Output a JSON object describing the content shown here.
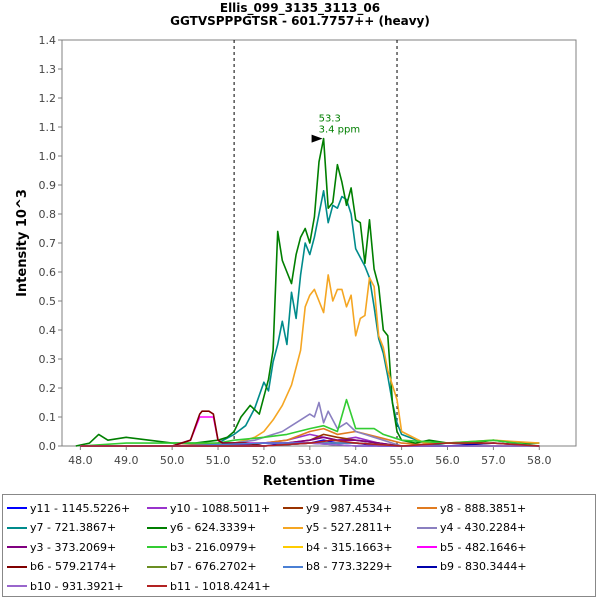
{
  "chart_data": {
    "type": "line",
    "title": "Ellis_099_3135_3113_06",
    "subtitle": "GGTVSPPPGTSR - 601.7757++ (heavy)",
    "xlabel": "Retention Time",
    "ylabel": "Intensity 10^3",
    "xlim": [
      47.6,
      58.8
    ],
    "ylim": [
      0,
      1.4
    ],
    "x_ticks": [
      "48.0",
      "49.0",
      "50.0",
      "51.0",
      "52.0",
      "53.0",
      "54.0",
      "55.0",
      "56.0",
      "57.0",
      "58.0"
    ],
    "y_ticks": [
      "0.0",
      "0.1",
      "0.2",
      "0.3",
      "0.4",
      "0.5",
      "0.6",
      "0.7",
      "0.8",
      "0.9",
      "1.0",
      "1.1",
      "1.2",
      "1.3",
      "1.4"
    ],
    "grid": false,
    "legend_position": "bottom",
    "peak_boundaries": [
      51.35,
      54.9
    ],
    "peak_annotation": {
      "x": 53.3,
      "y": 1.06,
      "label_rt": "53.3",
      "label_ppm": "3.4 ppm",
      "color": "#007f00"
    },
    "series": [
      {
        "name": "y11 - 1145.5226+",
        "color": "#0000ff",
        "x": [
          48.0,
          49.0,
          50.0,
          51.0,
          52.0,
          52.5,
          53.0,
          53.3,
          53.6,
          54.0,
          54.5,
          55.0,
          56.0,
          57.0,
          58.0
        ],
        "values": [
          0,
          0,
          0,
          0,
          0,
          0.01,
          0.01,
          0.02,
          0.01,
          0.01,
          0,
          0,
          0,
          0,
          0
        ]
      },
      {
        "name": "y10 - 1088.5011+",
        "color": "#9933cc",
        "x": [
          48.0,
          49.0,
          50.0,
          51.0,
          52.0,
          52.5,
          53.0,
          53.3,
          53.6,
          54.0,
          54.5,
          55.0,
          56.0,
          57.0,
          58.0
        ],
        "values": [
          0,
          0,
          0,
          0,
          0.01,
          0.02,
          0.04,
          0.03,
          0.02,
          0.03,
          0.01,
          0,
          0,
          0,
          0
        ]
      },
      {
        "name": "y9 - 987.4534+",
        "color": "#993300",
        "x": [
          48.0,
          49.0,
          50.0,
          51.0,
          52.0,
          52.5,
          53.0,
          53.3,
          53.6,
          54.0,
          54.5,
          55.0,
          56.0,
          57.0,
          58.0
        ],
        "values": [
          0,
          0,
          0,
          0,
          0.01,
          0.01,
          0.02,
          0.04,
          0.03,
          0.02,
          0.01,
          0,
          0,
          0,
          0
        ]
      },
      {
        "name": "y8 - 888.3851+",
        "color": "#e07b20",
        "x": [
          48.0,
          49.0,
          50.0,
          51.0,
          52.0,
          52.5,
          53.0,
          53.3,
          53.6,
          54.0,
          54.5,
          55.0,
          56.0,
          57.0,
          58.0
        ],
        "values": [
          0,
          0,
          0,
          0.01,
          0.01,
          0.02,
          0.05,
          0.06,
          0.04,
          0.05,
          0.03,
          0.01,
          0,
          0.01,
          0
        ]
      },
      {
        "name": "y7 - 721.3867+",
        "color": "#008b8b",
        "x": [
          51.0,
          51.35,
          51.6,
          51.8,
          52.0,
          52.1,
          52.2,
          52.3,
          52.4,
          52.5,
          52.6,
          52.7,
          52.8,
          52.9,
          53.0,
          53.1,
          53.2,
          53.3,
          53.4,
          53.5,
          53.6,
          53.7,
          53.8,
          53.9,
          54.0,
          54.1,
          54.2,
          54.3,
          54.4,
          54.5,
          54.6,
          54.7,
          54.8,
          54.9,
          55.0,
          55.5,
          56.0
        ],
        "values": [
          0.01,
          0.04,
          0.07,
          0.13,
          0.22,
          0.19,
          0.29,
          0.35,
          0.43,
          0.35,
          0.53,
          0.44,
          0.59,
          0.7,
          0.66,
          0.72,
          0.8,
          0.88,
          0.77,
          0.83,
          0.82,
          0.86,
          0.85,
          0.8,
          0.68,
          0.65,
          0.62,
          0.58,
          0.48,
          0.37,
          0.32,
          0.24,
          0.15,
          0.08,
          0.04,
          0.01,
          0
        ]
      },
      {
        "name": "y6 - 624.3339+",
        "color": "#007f00",
        "x": [
          47.9,
          48.2,
          48.4,
          48.6,
          49.0,
          49.5,
          50.0,
          50.5,
          51.0,
          51.2,
          51.35,
          51.5,
          51.7,
          51.9,
          52.0,
          52.1,
          52.2,
          52.3,
          52.4,
          52.5,
          52.6,
          52.7,
          52.8,
          52.9,
          53.0,
          53.1,
          53.2,
          53.3,
          53.4,
          53.5,
          53.6,
          53.7,
          53.8,
          53.9,
          54.0,
          54.1,
          54.2,
          54.3,
          54.4,
          54.5,
          54.6,
          54.7,
          54.8,
          54.9,
          55.0,
          55.3,
          55.6,
          56.0,
          56.5,
          57.0,
          57.5,
          58.0
        ],
        "values": [
          0,
          0.01,
          0.04,
          0.02,
          0.03,
          0.02,
          0.01,
          0.01,
          0.02,
          0.03,
          0.05,
          0.1,
          0.14,
          0.11,
          0.17,
          0.23,
          0.33,
          0.74,
          0.64,
          0.6,
          0.56,
          0.66,
          0.72,
          0.75,
          0.7,
          0.79,
          0.98,
          1.06,
          0.82,
          0.84,
          0.97,
          0.91,
          0.83,
          0.89,
          0.78,
          0.77,
          0.63,
          0.78,
          0.61,
          0.55,
          0.4,
          0.38,
          0.15,
          0.05,
          0.02,
          0.01,
          0.02,
          0.01,
          0.01,
          0.02,
          0.01,
          0.01
        ]
      },
      {
        "name": "y5 - 527.2811+",
        "color": "#f5a623",
        "x": [
          51.35,
          51.6,
          51.8,
          52.0,
          52.2,
          52.4,
          52.6,
          52.8,
          52.9,
          53.0,
          53.1,
          53.2,
          53.3,
          53.4,
          53.5,
          53.6,
          53.7,
          53.8,
          53.9,
          54.0,
          54.1,
          54.2,
          54.3,
          54.4,
          54.5,
          54.6,
          54.7,
          54.8,
          54.9,
          55.0,
          55.5,
          56.0,
          57.0,
          58.0
        ],
        "values": [
          0.01,
          0.02,
          0.03,
          0.05,
          0.09,
          0.14,
          0.21,
          0.33,
          0.48,
          0.52,
          0.54,
          0.5,
          0.46,
          0.59,
          0.5,
          0.54,
          0.54,
          0.48,
          0.52,
          0.38,
          0.44,
          0.45,
          0.58,
          0.55,
          0.38,
          0.34,
          0.26,
          0.21,
          0.16,
          0.05,
          0.01,
          0.01,
          0.02,
          0.01
        ]
      },
      {
        "name": "y4 - 430.2284+",
        "color": "#8a7fc0",
        "x": [
          51.35,
          51.8,
          52.0,
          52.2,
          52.4,
          52.6,
          52.8,
          53.0,
          53.1,
          53.2,
          53.3,
          53.4,
          53.6,
          53.8,
          54.0,
          54.2,
          54.4,
          54.6,
          54.8,
          55.0
        ],
        "values": [
          0.01,
          0.02,
          0.03,
          0.04,
          0.05,
          0.07,
          0.09,
          0.11,
          0.1,
          0.15,
          0.08,
          0.12,
          0.06,
          0.08,
          0.05,
          0.04,
          0.03,
          0.02,
          0.01,
          0
        ]
      },
      {
        "name": "y3 - 373.2069+",
        "color": "#800080",
        "x": [
          48.0,
          49.0,
          50.0,
          51.0,
          52.0,
          52.5,
          53.0,
          53.3,
          53.6,
          54.0,
          54.5,
          55.0,
          56.0,
          57.0,
          58.0
        ],
        "values": [
          0,
          0,
          0,
          0,
          0.01,
          0.01,
          0.02,
          0.03,
          0.02,
          0.02,
          0.01,
          0,
          0,
          0,
          0
        ]
      },
      {
        "name": "b3 - 216.0979+",
        "color": "#33cc33",
        "x": [
          48.0,
          49.0,
          49.5,
          50.0,
          51.0,
          51.35,
          52.0,
          52.5,
          53.0,
          53.3,
          53.6,
          53.8,
          54.0,
          54.2,
          54.4,
          54.6,
          55.0,
          56.0,
          57.0,
          58.0
        ],
        "values": [
          0,
          0.01,
          0.01,
          0.01,
          0.01,
          0.02,
          0.03,
          0.04,
          0.06,
          0.07,
          0.05,
          0.16,
          0.06,
          0.06,
          0.06,
          0.04,
          0.02,
          0.01,
          0.02,
          0
        ]
      },
      {
        "name": "b4 - 315.1663+",
        "color": "#ffcc00",
        "x": [
          48.0,
          50.0,
          52.0,
          53.0,
          54.0,
          55.0,
          56.0,
          57.0,
          58.0
        ],
        "values": [
          0,
          0,
          0,
          0.01,
          0.01,
          0,
          0,
          0,
          0
        ]
      },
      {
        "name": "b5 - 482.1646+",
        "color": "#ff00ff",
        "x": [
          50.0,
          50.4,
          50.6,
          50.7,
          50.8,
          50.9,
          51.0,
          51.1,
          51.3,
          51.6,
          52.0,
          53.0
        ],
        "values": [
          0,
          0.02,
          0.1,
          0.1,
          0.1,
          0.1,
          0.02,
          0.01,
          0.01,
          0.01,
          0.01,
          0.01
        ]
      },
      {
        "name": "b6 - 579.2174+",
        "color": "#800000",
        "x": [
          50.0,
          50.4,
          50.6,
          50.65,
          50.8,
          50.9,
          51.0,
          51.1,
          51.3,
          51.6,
          52.0
        ],
        "values": [
          0,
          0.02,
          0.11,
          0.12,
          0.12,
          0.11,
          0.02,
          0.01,
          0.01,
          0.01,
          0
        ]
      },
      {
        "name": "b7 - 676.2702+",
        "color": "#6b8e23",
        "x": [
          48.0,
          50.0,
          52.0,
          53.0,
          54.0,
          55.0,
          56.0,
          58.0
        ],
        "values": [
          0,
          0,
          0,
          0.01,
          0.01,
          0,
          0,
          0
        ]
      },
      {
        "name": "b8 - 773.3229+",
        "color": "#4a7fd4",
        "x": [
          48.0,
          50.0,
          52.0,
          53.0,
          54.0,
          55.0,
          56.0,
          58.0
        ],
        "values": [
          0,
          0,
          0.01,
          0.01,
          0.01,
          0,
          0,
          0
        ]
      },
      {
        "name": "b9 - 830.3444+",
        "color": "#0000aa",
        "x": [
          48.0,
          50.0,
          52.0,
          53.0,
          54.0,
          55.0,
          56.0,
          57.0,
          58.0
        ],
        "values": [
          0,
          0,
          0,
          0.01,
          0,
          0,
          0,
          0.01,
          0
        ]
      },
      {
        "name": "b10 - 931.3921+",
        "color": "#9966cc",
        "x": [
          48.0,
          50.0,
          52.0,
          53.0,
          54.0,
          55.0,
          56.0,
          58.0
        ],
        "values": [
          0,
          0,
          0,
          0.01,
          0,
          0,
          0,
          0
        ]
      },
      {
        "name": "b11 - 1018.4241+",
        "color": "#b22222",
        "x": [
          48.0,
          50.0,
          52.0,
          53.0,
          53.5,
          54.0,
          55.0,
          56.0,
          57.0,
          58.0
        ],
        "values": [
          0,
          0,
          0,
          0.01,
          0.02,
          0.01,
          0,
          0.01,
          0.01,
          0
        ]
      }
    ]
  }
}
